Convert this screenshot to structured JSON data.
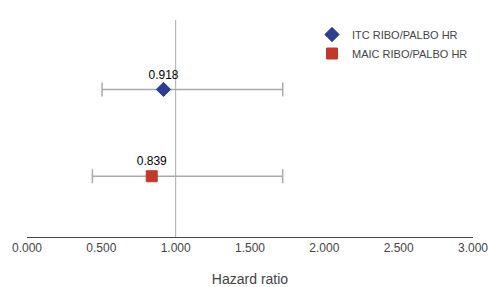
{
  "chart_data": {
    "type": "scatter",
    "xlabel": "Hazard ratio",
    "xlim": [
      0.0,
      3.0
    ],
    "xticks": [
      {
        "value": 0.0,
        "label": "0.000"
      },
      {
        "value": 0.5,
        "label": "0.500"
      },
      {
        "value": 1.0,
        "label": "1.000"
      },
      {
        "value": 1.5,
        "label": "1.500"
      },
      {
        "value": 2.0,
        "label": "2.000"
      },
      {
        "value": 2.5,
        "label": "2.500"
      },
      {
        "value": 3.0,
        "label": "3.000"
      }
    ],
    "reference_x": 1.0,
    "grid": false,
    "legend": "upper right",
    "tick_labels": "x",
    "data_labels": true,
    "series": [
      {
        "name": "ITC RIBO/PALBO HR",
        "color": "#2e3d8f",
        "marker": "diamond",
        "values": [
          0.918
        ],
        "ci_low": [
          0.505
        ],
        "ci_high": [
          1.72
        ]
      },
      {
        "name": "MAIC RIBO/PALBO HR",
        "color": "#c0392b",
        "marker": "square",
        "values": [
          0.839
        ],
        "ci_low": [
          0.44
        ],
        "ci_high": [
          1.72
        ]
      }
    ]
  }
}
